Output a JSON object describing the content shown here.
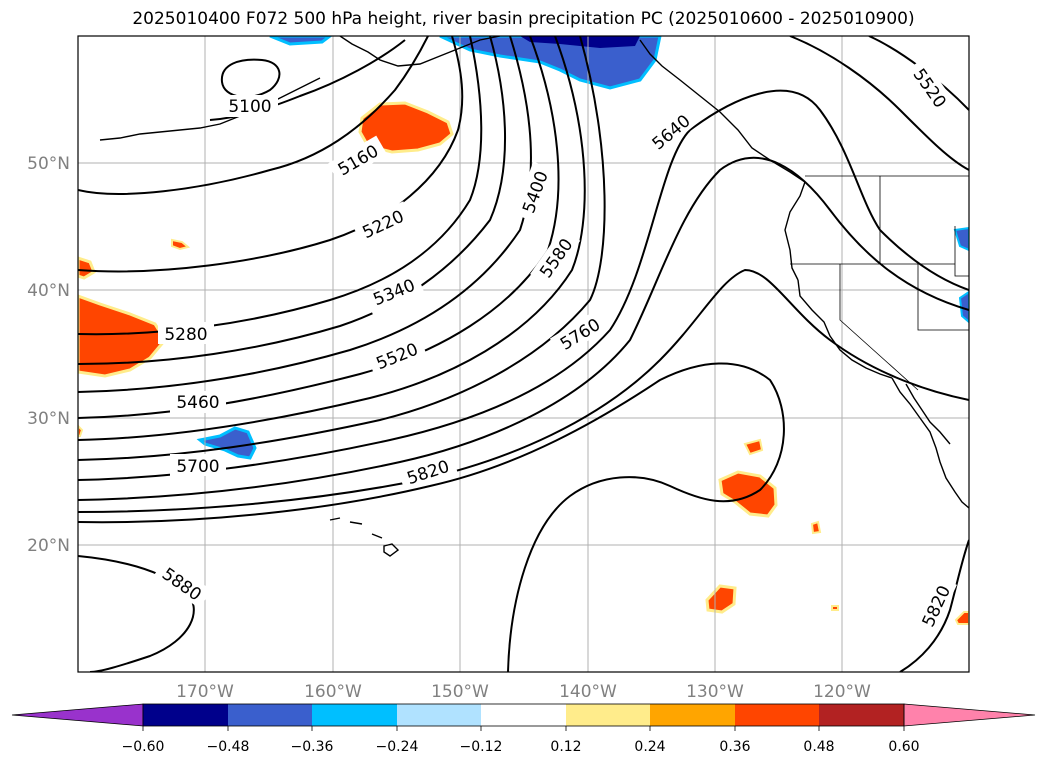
{
  "title": "2025010400 F072 500 hPa height, river basin precipitation PC (2025010600 - 2025010900)",
  "lat_labels": [
    "50°N",
    "40°N",
    "30°N",
    "20°N"
  ],
  "lon_labels": [
    "170°W",
    "160°W",
    "150°W",
    "140°W",
    "130°W",
    "120°W"
  ],
  "colorbar": {
    "ticks": [
      "−0.60",
      "−0.48",
      "−0.36",
      "−0.24",
      "−0.12",
      "0.12",
      "0.24",
      "0.36",
      "0.48",
      "0.60"
    ],
    "colors": [
      "#9932cc",
      "#00008b",
      "#3a5fcd",
      "#00bfff",
      "#b0e2ff",
      "#ffffff",
      "#ffec8b",
      "#ffa500",
      "#ff4500",
      "#b22222",
      "#ff82ab"
    ]
  },
  "contour_labels": [
    "5100",
    "5160",
    "5220",
    "5280",
    "5340",
    "5400",
    "5460",
    "5520",
    "5580",
    "5640",
    "5700",
    "5760",
    "5820",
    "5880",
    "5520",
    "5820"
  ],
  "colors": {
    "positive_fill": "#ff4500",
    "positive_edge": "#ffec8b",
    "negative_fill": "#3a5fcd",
    "negative_edge": "#00bfff",
    "grid": "#b0b0b0"
  }
}
